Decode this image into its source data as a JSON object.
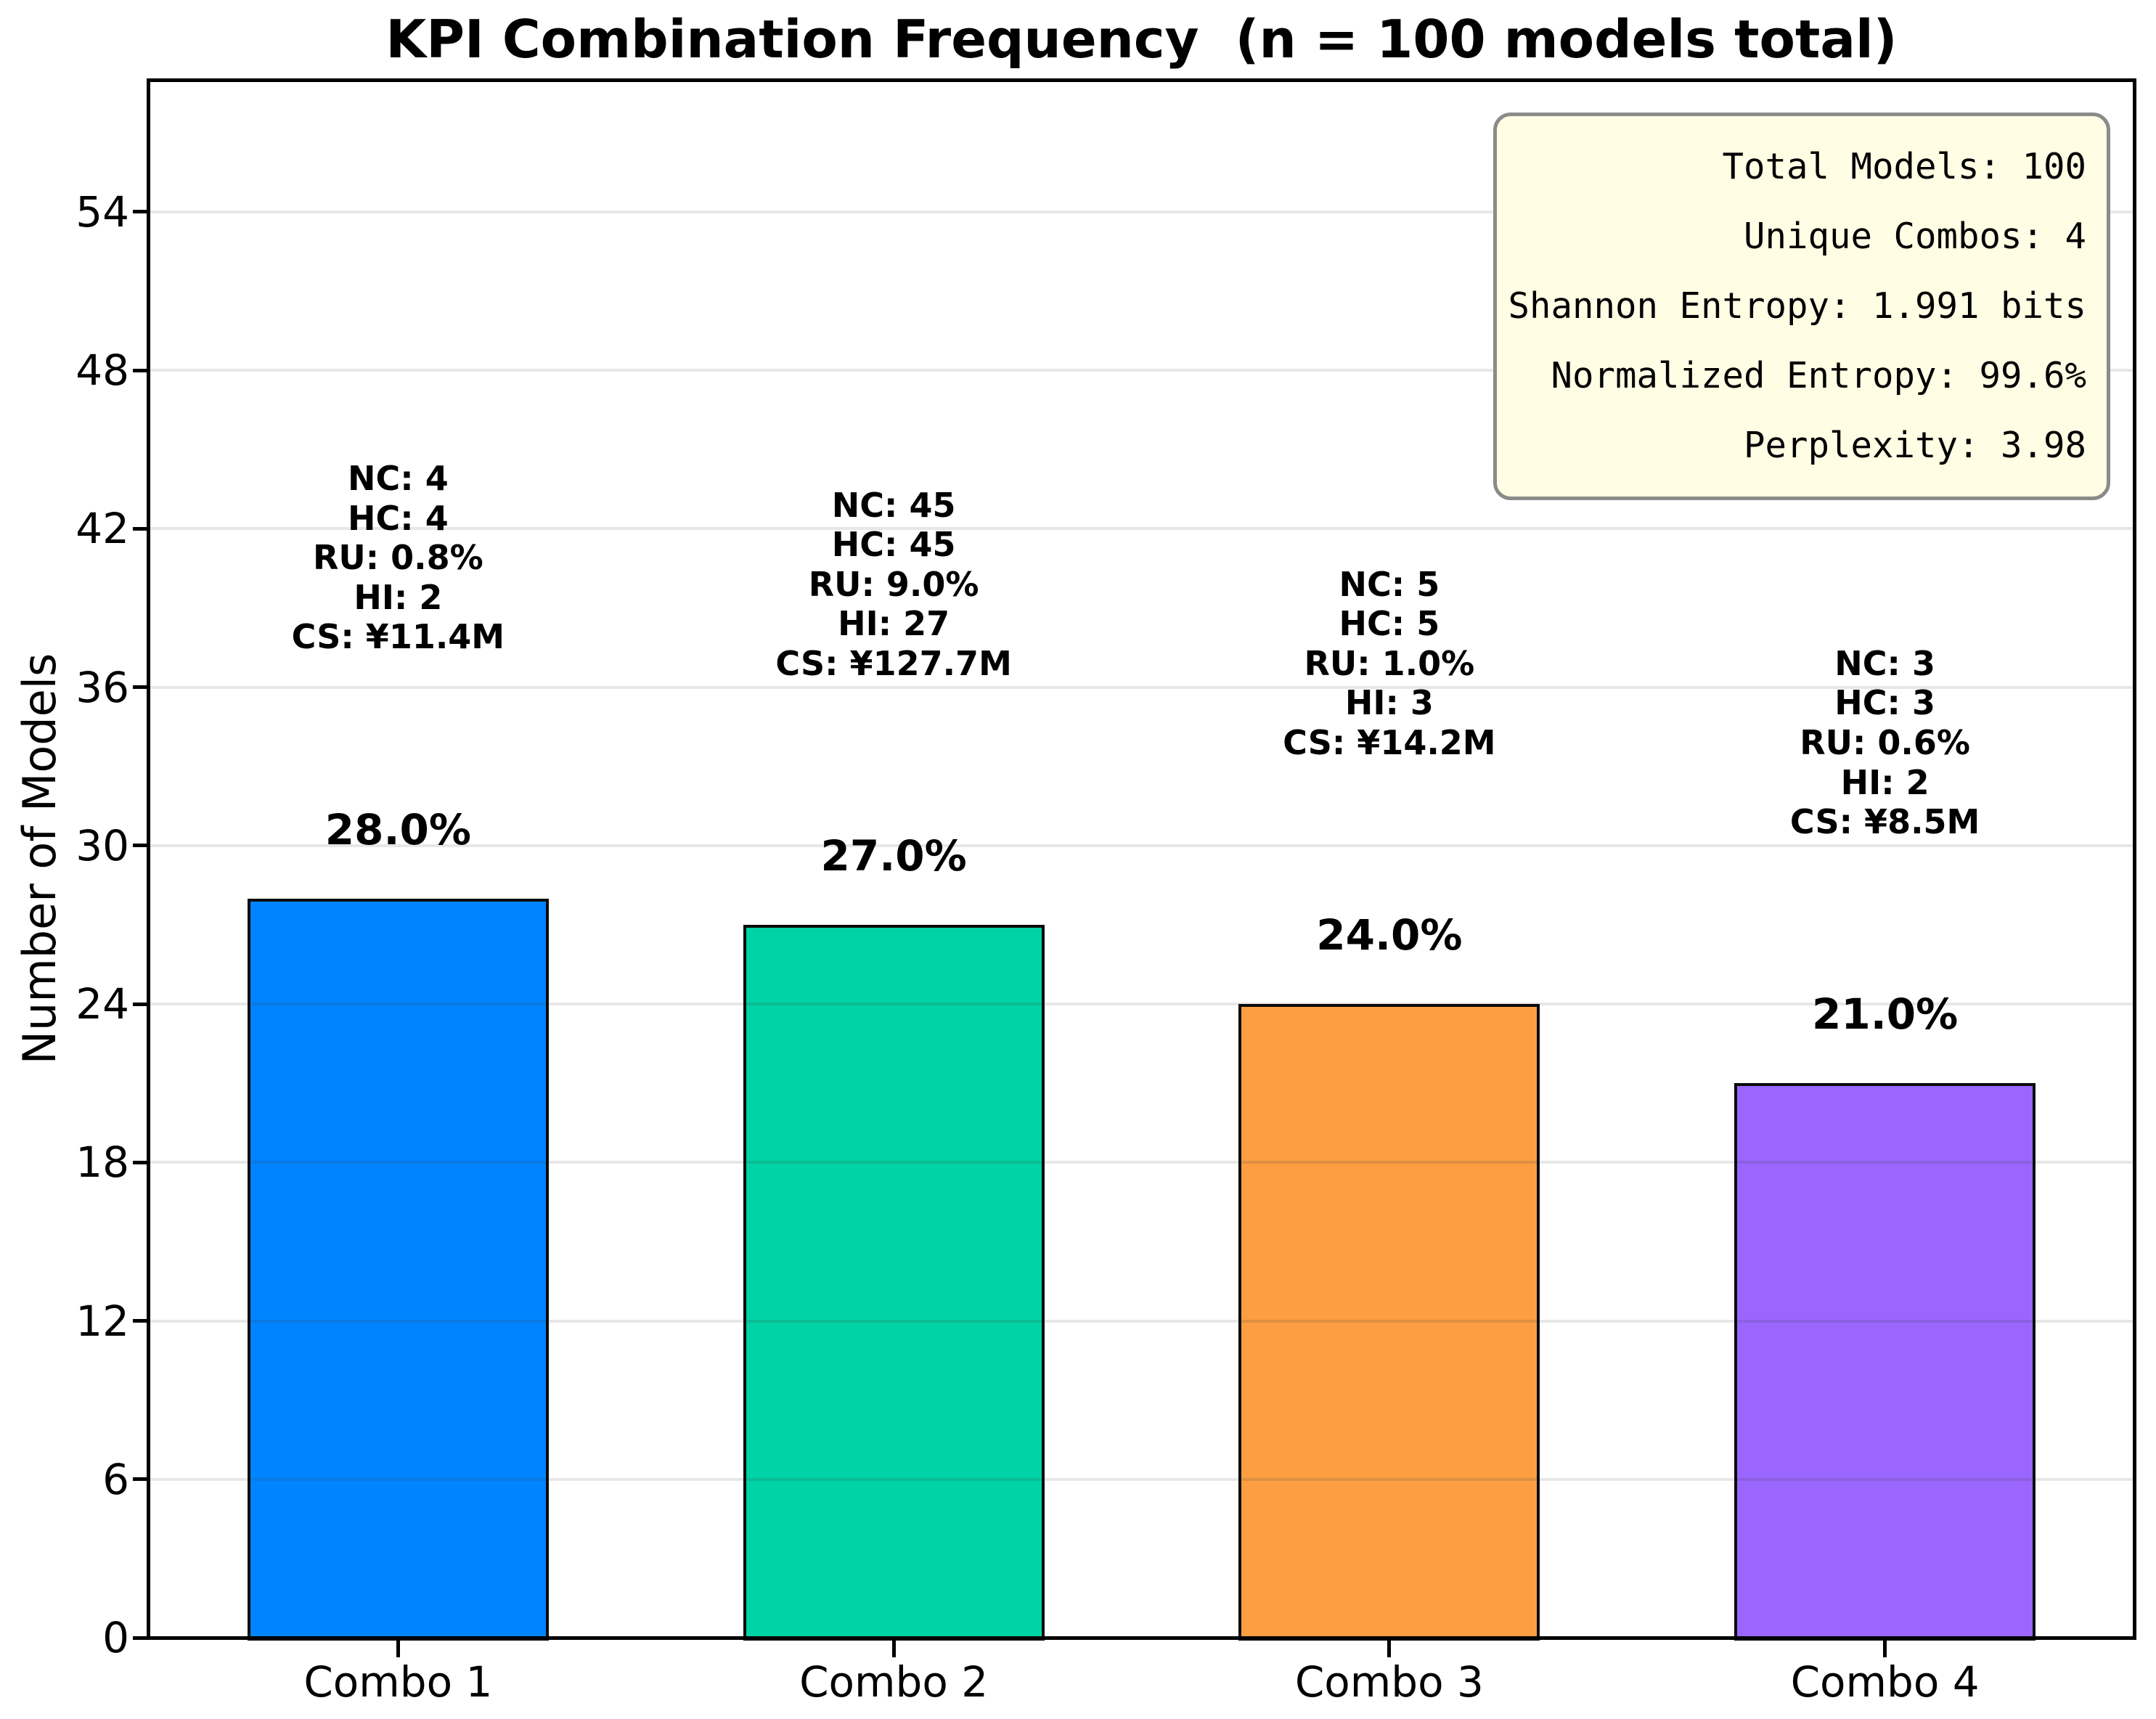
{
  "chart_data": {
    "type": "bar",
    "title": "KPI Combination Frequency  (n = 100 models total)",
    "xlabel": "",
    "ylabel": "Number of Models",
    "categories": [
      "Combo 1",
      "Combo 2",
      "Combo 3",
      "Combo 4"
    ],
    "values": [
      28,
      27,
      24,
      21
    ],
    "percent_labels": [
      "28.0%",
      "27.0%",
      "24.0%",
      "21.0%"
    ],
    "bar_colors": [
      "#0084ff",
      "#00d3a5",
      "#fc9e41",
      "#9a66fe"
    ],
    "bar_annotations": [
      [
        "NC: 4",
        "HC: 4",
        "RU: 0.8%",
        "HI: 2",
        "CS: ¥11.4M"
      ],
      [
        "NC: 45",
        "HC: 45",
        "RU: 9.0%",
        "HI: 27",
        "CS: ¥127.7M"
      ],
      [
        "NC: 5",
        "HC: 5",
        "RU: 1.0%",
        "HI: 3",
        "CS: ¥14.2M"
      ],
      [
        "NC: 3",
        "HC: 3",
        "RU: 0.6%",
        "HI: 2",
        "CS: ¥8.5M"
      ]
    ],
    "yticks": [
      0,
      6,
      12,
      18,
      24,
      30,
      36,
      42,
      48,
      54
    ],
    "ylim": [
      0,
      59
    ],
    "grid": true,
    "legend": null,
    "stats_box": {
      "lines": [
        "Total Models: 100",
        "Unique Combos: 4",
        "Shannon Entropy: 1.991 bits",
        "Normalized Entropy: 99.6%",
        "Perplexity: 3.98"
      ],
      "background": "#fffde4",
      "border_color": "#8b8b8b"
    }
  }
}
